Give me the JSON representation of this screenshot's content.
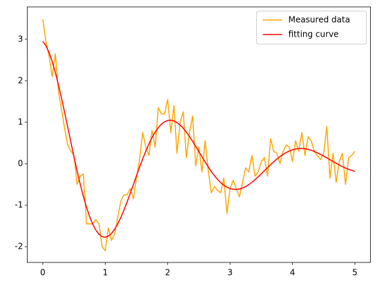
{
  "chart_data": {
    "type": "line",
    "x": [
      0,
      0.05,
      0.1,
      0.15,
      0.2,
      0.25,
      0.3,
      0.35,
      0.4,
      0.45,
      0.5,
      0.55,
      0.6,
      0.65,
      0.7,
      0.75,
      0.8,
      0.85,
      0.9,
      0.95,
      1,
      1.05,
      1.1,
      1.15,
      1.2,
      1.25,
      1.3,
      1.35,
      1.4,
      1.45,
      1.5,
      1.55,
      1.6,
      1.65,
      1.7,
      1.75,
      1.8,
      1.85,
      1.9,
      1.95,
      2,
      2.05,
      2.1,
      2.15,
      2.2,
      2.25,
      2.3,
      2.35,
      2.4,
      2.45,
      2.5,
      2.55,
      2.6,
      2.65,
      2.7,
      2.75,
      2.8,
      2.85,
      2.9,
      2.95,
      3,
      3.05,
      3.1,
      3.15,
      3.2,
      3.25,
      3.3,
      3.35,
      3.4,
      3.45,
      3.5,
      3.55,
      3.6,
      3.65,
      3.7,
      3.75,
      3.8,
      3.85,
      3.9,
      3.95,
      4,
      4.05,
      4.1,
      4.15,
      4.2,
      4.25,
      4.3,
      4.35,
      4.4,
      4.45,
      4.5,
      4.55,
      4.6,
      4.65,
      4.7,
      4.75,
      4.8,
      4.85,
      4.9,
      4.95,
      5
    ],
    "series": [
      {
        "name": "Measured data",
        "color": "#ffa500",
        "values": [
          3.48,
          2.95,
          2.6,
          2.1,
          2.65,
          1.75,
          1.3,
          0.85,
          0.45,
          0.3,
          0.2,
          -0.5,
          -0.3,
          -0.25,
          -1.45,
          -1.45,
          -1.45,
          -1.35,
          -1.45,
          -2.0,
          -2.1,
          -1.55,
          -1.85,
          -1.7,
          -1.3,
          -0.9,
          -0.75,
          -0.75,
          -0.6,
          -0.85,
          -0.35,
          0.1,
          0.75,
          0.4,
          0.2,
          0.8,
          0.4,
          1.35,
          1.2,
          1.2,
          1.55,
          0.75,
          1.4,
          0.25,
          1.0,
          1.25,
          0.15,
          0.75,
          1.15,
          -0.05,
          0.4,
          -0.2,
          0.55,
          -0.15,
          -0.7,
          -0.55,
          -0.65,
          -0.7,
          -0.35,
          -1.2,
          -0.6,
          -0.4,
          -0.6,
          -0.8,
          -0.45,
          -0.1,
          -0.2,
          0.2,
          -0.3,
          -0.2,
          0.05,
          0.15,
          -0.3,
          0.6,
          0.3,
          0.25,
          0,
          0.3,
          0.45,
          0.4,
          0.05,
          0.55,
          0.3,
          0.75,
          0.2,
          0.65,
          0.55,
          0.3,
          0.2,
          0.1,
          0.25,
          0.9,
          -0.35,
          0.25,
          -0.45,
          0.05,
          0.25,
          -0.5,
          0.15,
          0.2,
          0.3
        ]
      },
      {
        "name": "fitting curve",
        "color": "#ff0000",
        "values": [
          2.95,
          2.845,
          2.681,
          2.464,
          2.203,
          1.905,
          1.578,
          1.232,
          0.875,
          0.516,
          0.162,
          -0.177,
          -0.497,
          -0.789,
          -1.049,
          -1.274,
          -1.458,
          -1.601,
          -1.701,
          -1.757,
          -1.771,
          -1.745,
          -1.681,
          -1.582,
          -1.452,
          -1.296,
          -1.118,
          -0.924,
          -0.718,
          -0.507,
          -0.294,
          -0.085,
          0.116,
          0.304,
          0.477,
          0.63,
          0.761,
          0.87,
          0.952,
          1.009,
          1.042,
          1.049,
          1.032,
          0.992,
          0.933,
          0.856,
          0.762,
          0.656,
          0.541,
          0.418,
          0.293,
          0.168,
          0.043,
          -0.075,
          -0.186,
          -0.288,
          -0.378,
          -0.455,
          -0.518,
          -0.566,
          -0.6,
          -0.618,
          -0.622,
          -0.611,
          -0.586,
          -0.551,
          -0.504,
          -0.448,
          -0.385,
          -0.316,
          -0.244,
          -0.169,
          -0.095,
          -0.021,
          0.048,
          0.114,
          0.173,
          0.225,
          0.27,
          0.306,
          0.337,
          0.355,
          0.366,
          0.368,
          0.361,
          0.346,
          0.324,
          0.295,
          0.261,
          0.223,
          0.185,
          0.141,
          0.097,
          0.053,
          0.01,
          -0.031,
          -0.07,
          -0.105,
          -0.135,
          -0.161,
          -0.184
        ]
      }
    ],
    "xlim": [
      -0.25,
      5.25
    ],
    "xticks": [
      0,
      1,
      2,
      3,
      4,
      5
    ],
    "ylim": [
      -2.38,
      3.78
    ],
    "yticks": [
      -2,
      -1,
      0,
      1,
      2,
      3
    ],
    "grid": false,
    "legend": "upper right"
  }
}
